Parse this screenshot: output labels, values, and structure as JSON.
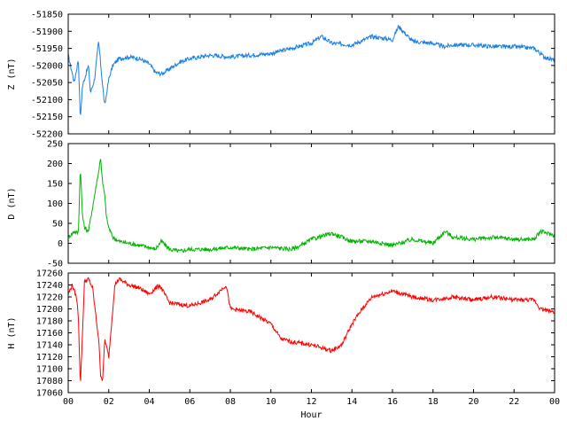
{
  "chart_data": [
    {
      "type": "line",
      "ylabel": "Z (nT)",
      "color": "#1a7fe0",
      "ylim": [
        -52200,
        -51850
      ],
      "yticks": [
        -51850,
        -51900,
        -51950,
        -52000,
        -52050,
        -52100,
        -52150,
        -52200
      ],
      "xlim": [
        0,
        24
      ],
      "x": [
        0,
        0.3,
        0.5,
        0.6,
        0.7,
        0.8,
        1.0,
        1.1,
        1.3,
        1.5,
        1.7,
        1.8,
        2.0,
        2.2,
        2.5,
        3.0,
        3.5,
        4.0,
        4.3,
        4.6,
        5.0,
        5.5,
        6.0,
        7.0,
        8.0,
        9.0,
        10.0,
        11.0,
        12.0,
        12.5,
        13.0,
        14.0,
        15.0,
        16.0,
        16.3,
        17.0,
        18.0,
        18.5,
        19.0,
        20.0,
        21.0,
        22.0,
        23.0,
        23.5,
        24.0
      ],
      "y": [
        -51970,
        -52050,
        -51980,
        -52160,
        -52060,
        -52040,
        -52000,
        -52080,
        -52040,
        -51930,
        -52060,
        -52120,
        -52040,
        -52000,
        -51980,
        -51975,
        -51980,
        -51995,
        -52020,
        -52025,
        -52010,
        -51990,
        -51980,
        -51970,
        -51975,
        -51970,
        -51965,
        -51950,
        -51935,
        -51915,
        -51935,
        -51940,
        -51915,
        -51925,
        -51885,
        -51930,
        -51935,
        -51945,
        -51940,
        -51940,
        -51945,
        -51945,
        -51950,
        -51975,
        -51985
      ]
    },
    {
      "type": "line",
      "ylabel": "D (nT)",
      "color": "#00b400",
      "ylim": [
        -50,
        250
      ],
      "yticks": [
        250,
        200,
        150,
        100,
        50,
        0,
        -50
      ],
      "xlim": [
        0,
        24
      ],
      "x": [
        0,
        0.3,
        0.5,
        0.6,
        0.7,
        0.8,
        1.0,
        1.2,
        1.5,
        1.6,
        1.7,
        1.8,
        1.9,
        2.0,
        2.2,
        2.5,
        3.0,
        3.5,
        4.0,
        4.3,
        4.6,
        5.0,
        5.5,
        6.0,
        7.0,
        8.0,
        9.0,
        10.0,
        11.0,
        11.5,
        12.0,
        13.0,
        13.5,
        14.0,
        15.0,
        16.0,
        17.0,
        18.0,
        18.6,
        19.0,
        20.0,
        21.0,
        22.0,
        23.0,
        23.3,
        24.0
      ],
      "y": [
        15,
        30,
        25,
        195,
        70,
        40,
        30,
        90,
        180,
        215,
        150,
        120,
        60,
        40,
        15,
        5,
        0,
        -5,
        -10,
        -15,
        5,
        -15,
        -20,
        -15,
        -15,
        -10,
        -15,
        -10,
        -15,
        -5,
        10,
        25,
        15,
        5,
        5,
        -5,
        10,
        0,
        30,
        15,
        10,
        15,
        10,
        10,
        30,
        20
      ]
    },
    {
      "type": "line",
      "ylabel": "H (nT)",
      "xlabel": "Hour",
      "color": "#ff0000",
      "ylim": [
        17060,
        17260
      ],
      "yticks": [
        17260,
        17240,
        17220,
        17200,
        17180,
        17160,
        17140,
        17120,
        17100,
        17080,
        17060
      ],
      "xlim": [
        0,
        24
      ],
      "xticks": [
        "00",
        "02",
        "04",
        "06",
        "08",
        "10",
        "12",
        "14",
        "16",
        "18",
        "20",
        "22",
        "00"
      ],
      "x": [
        0,
        0.2,
        0.4,
        0.5,
        0.6,
        0.8,
        1.0,
        1.2,
        1.5,
        1.6,
        1.7,
        1.8,
        2.0,
        2.3,
        2.5,
        3.0,
        3.5,
        4.0,
        4.5,
        5.0,
        6.0,
        7.0,
        7.8,
        8.0,
        9.0,
        10.0,
        10.5,
        11.0,
        12.0,
        12.5,
        13.0,
        13.5,
        14.0,
        14.5,
        15.0,
        16.0,
        17.0,
        18.0,
        19.0,
        20.0,
        21.0,
        22.0,
        23.0,
        23.3,
        24.0
      ],
      "y": [
        17225,
        17240,
        17220,
        17190,
        17070,
        17245,
        17250,
        17235,
        17150,
        17090,
        17080,
        17150,
        17120,
        17240,
        17250,
        17240,
        17235,
        17225,
        17240,
        17210,
        17205,
        17215,
        17240,
        17200,
        17195,
        17175,
        17150,
        17145,
        17140,
        17135,
        17130,
        17140,
        17175,
        17200,
        17220,
        17230,
        17220,
        17215,
        17220,
        17215,
        17220,
        17215,
        17215,
        17200,
        17195
      ]
    }
  ]
}
